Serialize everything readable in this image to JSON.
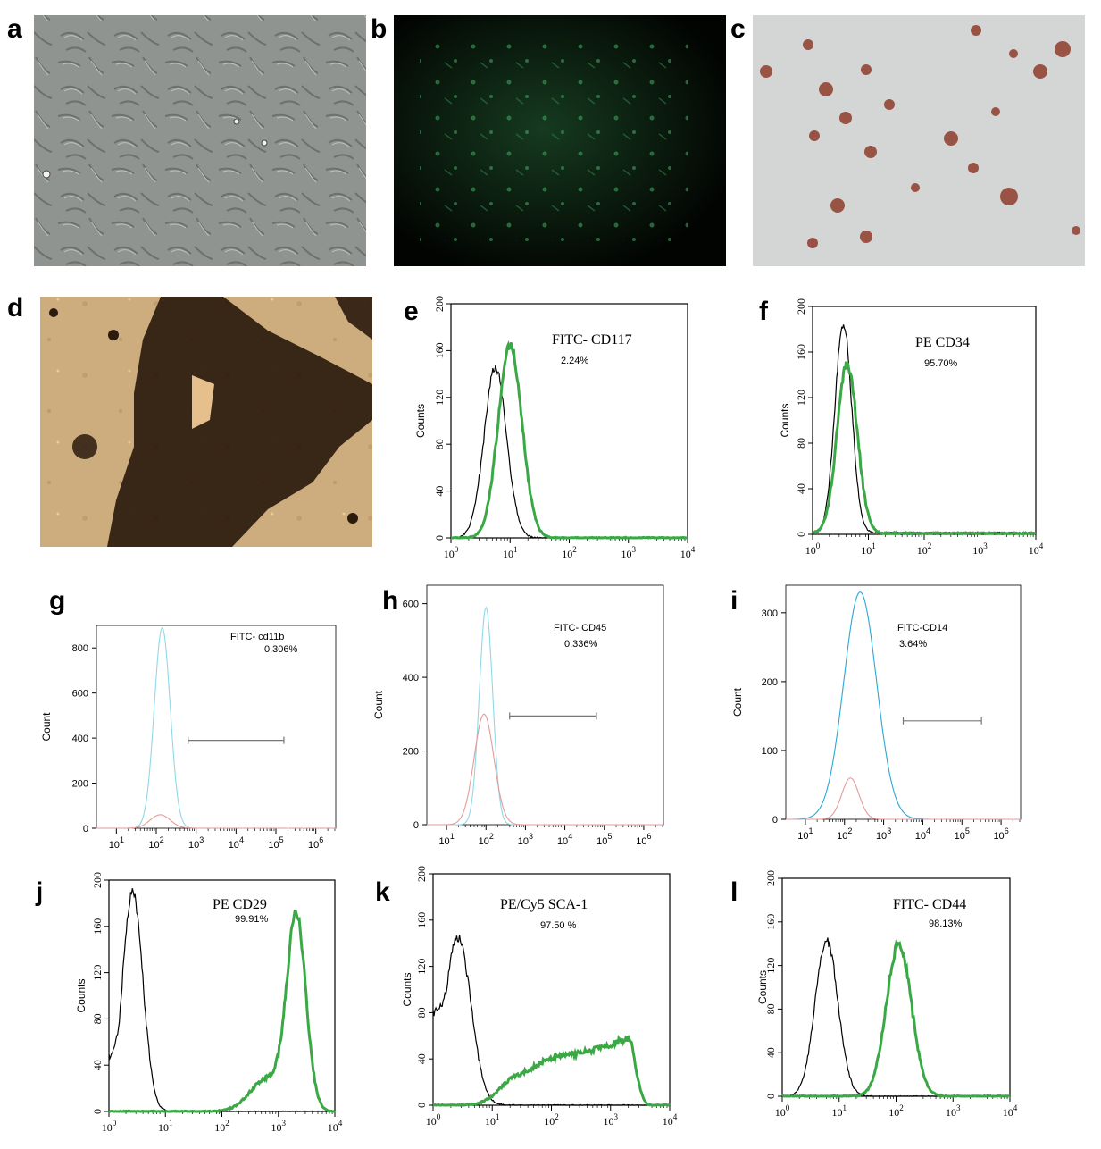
{
  "panel_labels": {
    "a": "a",
    "b": "b",
    "c": "c",
    "d": "d",
    "e": "e",
    "f": "f",
    "g": "g",
    "h": "h",
    "i": "i",
    "j": "j",
    "k": "k",
    "l": "l"
  },
  "micrographs": {
    "a": {
      "stain": "phase-contrast",
      "colors": [
        "#8a8e8c",
        "#5f6463",
        "#c9cccb"
      ]
    },
    "b": {
      "stain": "green-fluorescence",
      "colors": [
        "#050705",
        "#1f6a35",
        "#48b86a"
      ]
    },
    "c": {
      "stain": "oil-red",
      "colors": [
        "#d6d8d7",
        "#8a3c2c",
        "#c07a64"
      ]
    },
    "d": {
      "stain": "von-kossa",
      "colors": [
        "#caa97a",
        "#2b1a0e",
        "#e2c898"
      ]
    }
  },
  "chart_data": [
    {
      "id": "e",
      "type": "area",
      "style": "counts",
      "marker": "FITC- CD117",
      "percent": "2.24%",
      "ylabel": "Counts",
      "xlim": [
        0,
        4
      ],
      "ylim": [
        0,
        200
      ],
      "yticks": [
        "0",
        "40",
        "80",
        "120",
        "160",
        "200"
      ],
      "xtick_exponents": [
        "0",
        "1",
        "2",
        "3",
        "4"
      ],
      "series": [
        {
          "color": "#000000",
          "peaks": [
            {
              "x": 0.75,
              "y": 145,
              "w": 0.19
            }
          ],
          "bg": 0
        },
        {
          "color": "#3aa845",
          "peaks": [
            {
              "x": 1.0,
              "y": 165,
              "w": 0.2
            }
          ],
          "bg": 0
        }
      ]
    },
    {
      "id": "f",
      "type": "area",
      "style": "counts",
      "marker": "PE CD34",
      "percent": "95.70%",
      "ylabel": "Counts",
      "xlim": [
        0,
        4
      ],
      "ylim": [
        0,
        200
      ],
      "yticks": [
        "0",
        "40",
        "80",
        "120",
        "160",
        "200"
      ],
      "xtick_exponents": [
        "0",
        "1",
        "2",
        "3",
        "4"
      ],
      "series": [
        {
          "color": "#000000",
          "peaks": [
            {
              "x": 0.55,
              "y": 183,
              "w": 0.15
            }
          ],
          "bg": 1.5
        },
        {
          "color": "#3aa845",
          "peaks": [
            {
              "x": 0.62,
              "y": 148,
              "w": 0.18
            }
          ],
          "bg": 1
        }
      ]
    },
    {
      "id": "g",
      "type": "area",
      "style": "count",
      "marker": "FITC- cd11b",
      "percent": "0.306%",
      "ylabel": "Count",
      "xlim": [
        0.5,
        6.5
      ],
      "ylim": [
        0,
        900
      ],
      "yticks": [
        "0",
        "200",
        "400",
        "600",
        "800"
      ],
      "ytick_values": [
        0,
        200,
        400,
        600,
        800
      ],
      "xtick_exponents": [
        "1",
        "2",
        "3",
        "4",
        "5",
        "6"
      ],
      "gate": [
        2.8,
        5.2
      ],
      "gate_y": 390,
      "series": [
        {
          "color": "#8fd8e8",
          "peaks": [
            {
              "x": 2.15,
              "y": 890,
              "w": 0.2
            }
          ],
          "bg": 0
        },
        {
          "color": "#e59a9a",
          "peaks": [
            {
              "x": 2.1,
              "y": 60,
              "w": 0.25
            }
          ],
          "bg": 0
        }
      ]
    },
    {
      "id": "h",
      "type": "area",
      "style": "count",
      "marker": "FITC- CD45",
      "percent": "0.336%",
      "ylabel": "Count",
      "xlim": [
        0.5,
        6.5
      ],
      "ylim": [
        0,
        650
      ],
      "yticks": [
        "0",
        "200",
        "400",
        "600"
      ],
      "ytick_values": [
        0,
        200,
        400,
        600
      ],
      "xtick_exponents": [
        "1",
        "2",
        "3",
        "4",
        "5",
        "6"
      ],
      "gate": [
        2.6,
        4.8
      ],
      "gate_y": 295,
      "series": [
        {
          "color": "#8fd8e8",
          "peaks": [
            {
              "x": 2.0,
              "y": 590,
              "w": 0.17
            }
          ],
          "bg": 0
        },
        {
          "color": "#e59a9a",
          "peaks": [
            {
              "x": 1.95,
              "y": 300,
              "w": 0.25
            }
          ],
          "bg": 0
        }
      ]
    },
    {
      "id": "i",
      "type": "area",
      "style": "count",
      "marker": "FITC-CD14",
      "percent": "3.64%",
      "ylabel": "Count",
      "xlim": [
        0.5,
        6.5
      ],
      "ylim": [
        0,
        340
      ],
      "yticks": [
        "0",
        "100",
        "200",
        "300"
      ],
      "ytick_values": [
        0,
        100,
        200,
        300
      ],
      "xtick_exponents": [
        "1",
        "2",
        "3",
        "4",
        "5",
        "6"
      ],
      "gate": [
        3.5,
        5.5
      ],
      "gate_y": 143,
      "series": [
        {
          "color": "#2aa7d6",
          "peaks": [
            {
              "x": 2.4,
              "y": 330,
              "w": 0.42
            }
          ],
          "bg": 0
        },
        {
          "color": "#e59a9a",
          "peaks": [
            {
              "x": 2.15,
              "y": 60,
              "w": 0.22
            }
          ],
          "bg": 0
        }
      ]
    },
    {
      "id": "j",
      "type": "area",
      "style": "counts",
      "marker": "PE CD29",
      "percent": "99.91%",
      "ylabel": "Counts",
      "xlim": [
        0,
        4
      ],
      "ylim": [
        0,
        200
      ],
      "yticks": [
        "0",
        "40",
        "80",
        "120",
        "160",
        "200"
      ],
      "xtick_exponents": [
        "0",
        "1",
        "2",
        "3",
        "4"
      ],
      "series": [
        {
          "color": "#000000",
          "peaks": [
            {
              "x": 0.42,
              "y": 190,
              "w": 0.18
            }
          ],
          "bg": 0,
          "start": 48
        },
        {
          "color": "#3aa845",
          "peaks": [
            {
              "x": 3.32,
              "y": 165,
              "w": 0.17
            },
            {
              "x": 2.8,
              "y": 28,
              "w": 0.3
            }
          ],
          "bg": 0
        }
      ]
    },
    {
      "id": "k",
      "type": "area",
      "style": "counts",
      "marker": "PE/Cy5  SCA-1",
      "percent": "97.50 %",
      "ylabel": "Counts",
      "xlim": [
        0,
        4
      ],
      "ylim": [
        0,
        200
      ],
      "yticks": [
        "0",
        "40",
        "80",
        "120",
        "160",
        "200"
      ],
      "xtick_exponents": [
        "0",
        "1",
        "2",
        "3",
        "4"
      ],
      "series": [
        {
          "color": "#000000",
          "peaks": [
            {
              "x": 0.42,
              "y": 145,
              "w": 0.22
            }
          ],
          "bg": 0,
          "start": 80
        },
        {
          "color": "#3aa845",
          "plateau": {
            "x0": 1.45,
            "x1": 3.3,
            "y0": 25,
            "y1": 58
          },
          "peaks": [
            {
              "x": 2.0,
              "y": 6,
              "w": 0.3
            }
          ],
          "bg": 0
        }
      ]
    },
    {
      "id": "l",
      "type": "area",
      "style": "counts",
      "marker": "FITC- CD44",
      "percent": "98.13%",
      "ylabel": "Counts",
      "xlim": [
        0,
        4
      ],
      "ylim": [
        0,
        200
      ],
      "yticks": [
        "0",
        "40",
        "80",
        "120",
        "160",
        "200"
      ],
      "xtick_exponents": [
        "0",
        "1",
        "2",
        "3",
        "4"
      ],
      "series": [
        {
          "color": "#000000",
          "peaks": [
            {
              "x": 0.78,
              "y": 143,
              "w": 0.2
            }
          ],
          "bg": 0
        },
        {
          "color": "#3aa845",
          "peaks": [
            {
              "x": 2.05,
              "y": 140,
              "w": 0.22
            }
          ],
          "bg": 0
        }
      ]
    }
  ]
}
